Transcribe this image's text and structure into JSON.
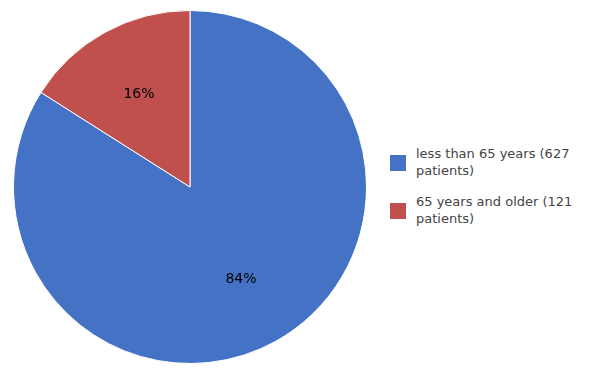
{
  "chart_data": {
    "type": "pie",
    "categories": [
      "less than 65 years (627\npatients)",
      "65 years and older (121\npatients)"
    ],
    "values": [
      84,
      16
    ],
    "value_labels": [
      "84%",
      "16%"
    ],
    "colors": [
      "#4472C4",
      "#C0504D"
    ],
    "data_labels": true,
    "legend": "right"
  }
}
